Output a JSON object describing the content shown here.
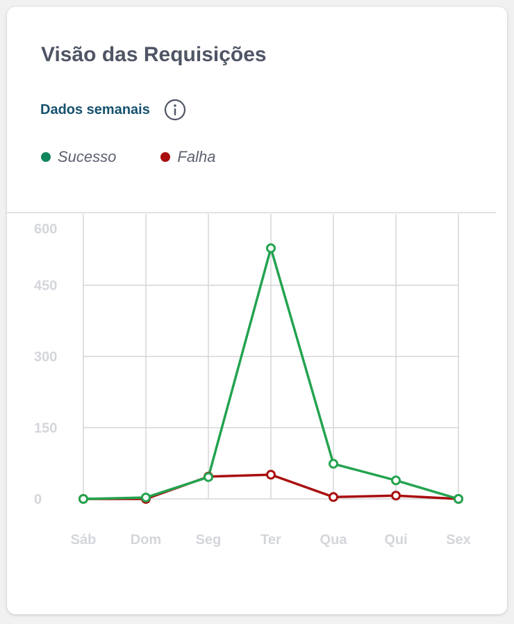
{
  "card": {
    "title": "Visão das Requisições",
    "subtitle": "Dados semanais",
    "info_icon": "info-circle-icon"
  },
  "legend": [
    {
      "label": "Sucesso",
      "color": "#11865d"
    },
    {
      "label": "Falha",
      "color": "#a80e0e"
    }
  ],
  "colors": {
    "grid": "#d5d6d9",
    "tick_label": "#d4d6dc",
    "top_rule": "#d9d9d9",
    "marker_fill": "#ffffff"
  },
  "chart_data": {
    "type": "line",
    "categories": [
      "Sáb",
      "Dom",
      "Seg",
      "Ter",
      "Qua",
      "Qui",
      "Sex"
    ],
    "ylim": [
      0,
      600
    ],
    "yticks": [
      0,
      150,
      300,
      450,
      600
    ],
    "grid": true,
    "legend_position": "top-left",
    "series": [
      {
        "name": "Sucesso",
        "color": "#23a34f",
        "values": [
          0,
          3,
          46,
          528,
          74,
          39,
          0
        ]
      },
      {
        "name": "Falha",
        "color": "#a80e0e",
        "values": [
          0,
          0,
          47,
          51,
          4,
          7,
          0
        ]
      }
    ]
  }
}
